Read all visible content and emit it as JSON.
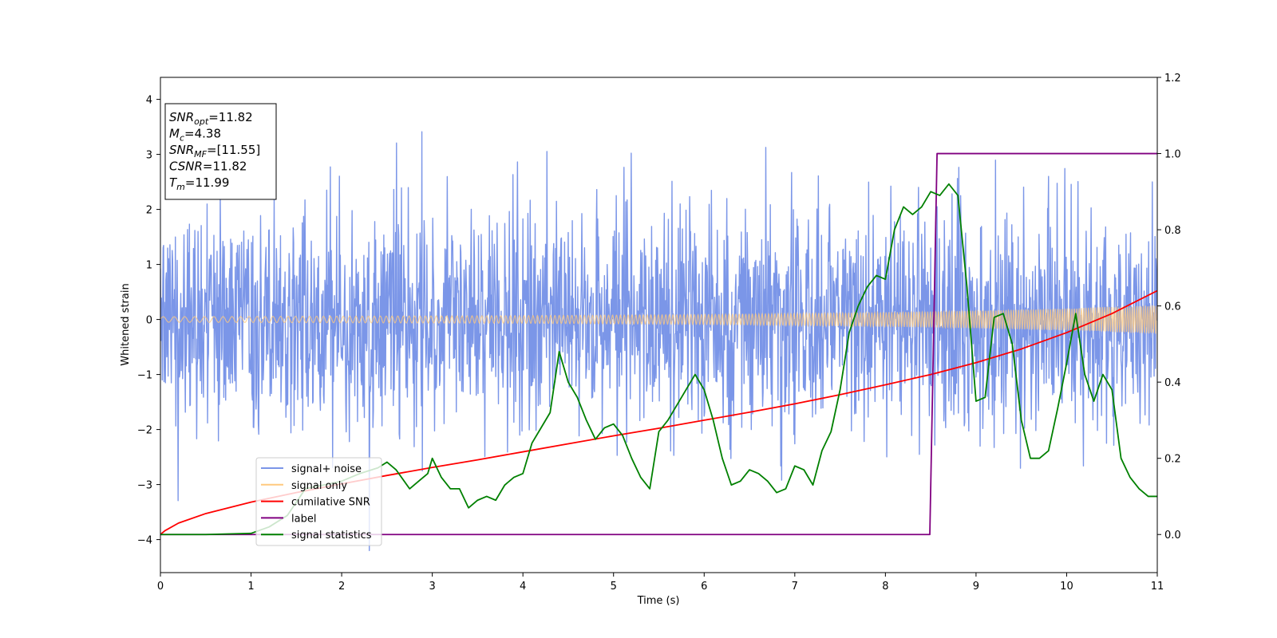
{
  "chart_data": {
    "type": "line",
    "title": "",
    "xlabel": "Time (s)",
    "ylabel": "Whitened strain",
    "y2label": "",
    "xlim": [
      0,
      11
    ],
    "ylim": [
      -4.6,
      4.4
    ],
    "y2lim": [
      -0.1,
      1.2
    ],
    "xticks": [
      0,
      1,
      2,
      3,
      4,
      5,
      6,
      7,
      8,
      9,
      10,
      11
    ],
    "yticks": [
      -4,
      -3,
      -2,
      -1,
      0,
      1,
      2,
      3,
      4
    ],
    "y2ticks": [
      0.0,
      0.2,
      0.4,
      0.6,
      0.8,
      1.0,
      1.2
    ],
    "grid": false,
    "legend_position": "lower-left",
    "annotation": [
      {
        "name": "SNR",
        "sub": "opt",
        "value": "=11.82"
      },
      {
        "name": "M",
        "sub": "c",
        "value": "=4.38"
      },
      {
        "name": "SNR",
        "sub": "MF",
        "value": "=[11.55]"
      },
      {
        "name": "CSNR",
        "sub": "",
        "value": "=11.82"
      },
      {
        "name": "T",
        "sub": "m",
        "value": "=11.99"
      }
    ],
    "series": [
      {
        "name": "signal+ noise",
        "axis": "left",
        "color": "#7b96e8",
        "kind": "noise",
        "amplitude_std": 1.0,
        "sample_count": 2200
      },
      {
        "name": "signal only",
        "axis": "left",
        "color": "#ffc97f",
        "kind": "chirp",
        "envelope_x": [
          0,
          2,
          4,
          6,
          8,
          9,
          10,
          11
        ],
        "envelope_y": [
          0.05,
          0.06,
          0.07,
          0.09,
          0.13,
          0.16,
          0.2,
          0.26
        ]
      },
      {
        "name": "cumilative SNR",
        "axis": "right",
        "color": "#ff0000",
        "x": [
          0,
          0.05,
          0.2,
          0.5,
          1,
          1.5,
          2,
          2.5,
          3,
          3.5,
          4,
          4.5,
          5,
          5.5,
          6,
          6.5,
          7,
          7.5,
          8,
          8.5,
          9,
          9.5,
          10,
          10.5,
          11
        ],
        "y": [
          0.0,
          0.01,
          0.03,
          0.055,
          0.085,
          0.11,
          0.133,
          0.155,
          0.176,
          0.196,
          0.217,
          0.238,
          0.259,
          0.279,
          0.3,
          0.321,
          0.343,
          0.367,
          0.393,
          0.42,
          0.451,
          0.487,
          0.53,
          0.58,
          0.64
        ]
      },
      {
        "name": "label",
        "axis": "right",
        "color": "#800080",
        "x": [
          0,
          8.49,
          8.57,
          11
        ],
        "y": [
          0,
          0,
          1,
          1
        ]
      },
      {
        "name": "signal statistics",
        "axis": "right",
        "color": "#008000",
        "x": [
          0,
          0.5,
          1.0,
          1.2,
          1.4,
          1.6,
          1.8,
          2.0,
          2.2,
          2.4,
          2.5,
          2.6,
          2.75,
          2.85,
          2.95,
          3.0,
          3.1,
          3.2,
          3.3,
          3.4,
          3.5,
          3.6,
          3.7,
          3.8,
          3.9,
          4.0,
          4.1,
          4.2,
          4.3,
          4.4,
          4.5,
          4.6,
          4.7,
          4.8,
          4.9,
          5.0,
          5.1,
          5.2,
          5.3,
          5.4,
          5.5,
          5.6,
          5.7,
          5.8,
          5.9,
          6.0,
          6.1,
          6.2,
          6.3,
          6.4,
          6.5,
          6.6,
          6.7,
          6.8,
          6.9,
          7.0,
          7.1,
          7.2,
          7.3,
          7.4,
          7.5,
          7.6,
          7.7,
          7.8,
          7.9,
          8.0,
          8.1,
          8.2,
          8.3,
          8.4,
          8.5,
          8.6,
          8.7,
          8.8,
          8.9,
          9.0,
          9.1,
          9.2,
          9.3,
          9.4,
          9.5,
          9.6,
          9.7,
          9.8,
          9.9,
          10.0,
          10.1,
          10.2,
          10.3,
          10.4,
          10.5,
          10.6,
          10.7,
          10.8,
          10.9,
          11.0
        ],
        "y": [
          0.0,
          0.0,
          0.003,
          0.02,
          0.05,
          0.12,
          0.13,
          0.14,
          0.16,
          0.175,
          0.19,
          0.17,
          0.12,
          0.14,
          0.16,
          0.2,
          0.15,
          0.12,
          0.12,
          0.07,
          0.09,
          0.1,
          0.09,
          0.13,
          0.15,
          0.16,
          0.24,
          0.28,
          0.32,
          0.48,
          0.4,
          0.36,
          0.3,
          0.25,
          0.28,
          0.29,
          0.26,
          0.2,
          0.15,
          0.12,
          0.27,
          0.3,
          0.34,
          0.38,
          0.42,
          0.38,
          0.3,
          0.2,
          0.13,
          0.14,
          0.17,
          0.16,
          0.14,
          0.11,
          0.12,
          0.18,
          0.17,
          0.13,
          0.22,
          0.27,
          0.38,
          0.53,
          0.6,
          0.65,
          0.68,
          0.67,
          0.8,
          0.86,
          0.84,
          0.86,
          0.9,
          0.89,
          0.92,
          0.89,
          0.65,
          0.35,
          0.36,
          0.57,
          0.58,
          0.5,
          0.3,
          0.2,
          0.2,
          0.22,
          0.33,
          0.45,
          0.58,
          0.42,
          0.35,
          0.42,
          0.38,
          0.2,
          0.15,
          0.12,
          0.1,
          0.1
        ]
      }
    ]
  }
}
